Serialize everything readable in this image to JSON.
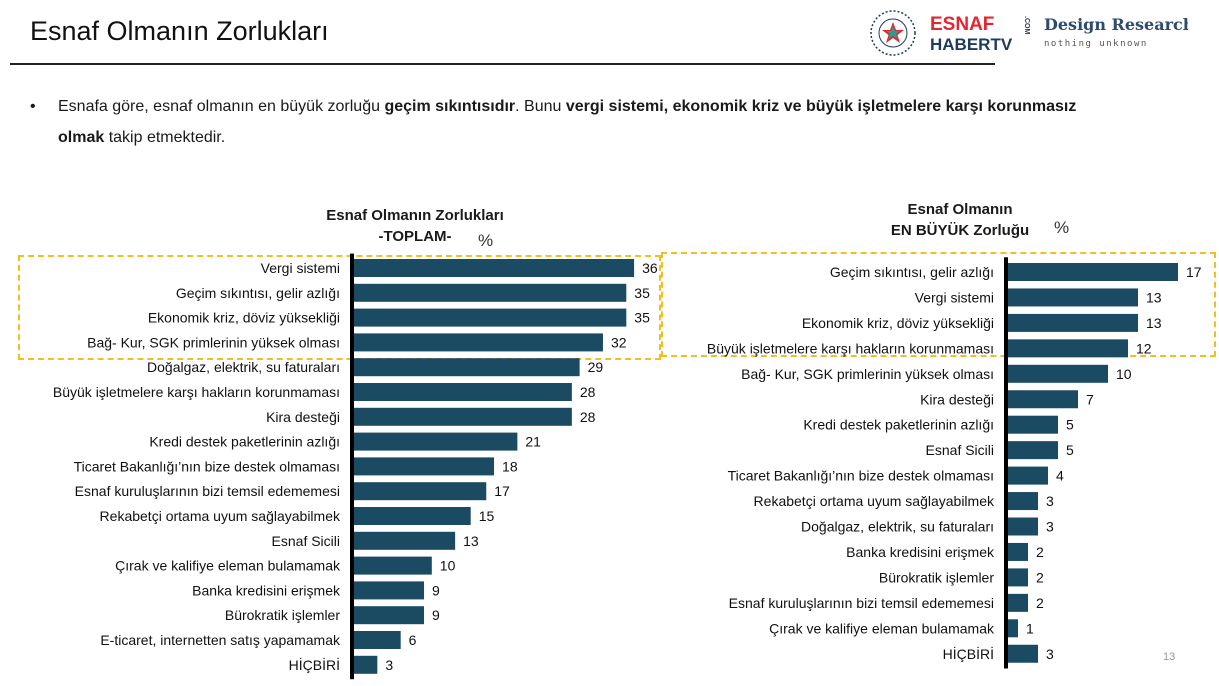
{
  "page": {
    "title": "Esnaf Olmanın Zorlukları",
    "page_number": "13",
    "bullet": {
      "t1": "Esnafa göre, esnaf olmanın en büyük zorluğu ",
      "b1": "geçim sıkıntısıdır",
      "t2": ".  Bunu ",
      "b2": "vergi sistemi, ekonomik kriz ve büyük işletmelere karşı korunmasız  olmak",
      "t3": " takip etmektedir."
    },
    "logos": {
      "badge_text": "ESNAF",
      "brand_top": "ESNAF",
      "brand_bottom": "HABERTV",
      "brand_com": ".COM",
      "dr_title": "Design Research",
      "dr_sub": "nothing unknown"
    },
    "colors": {
      "bar": "#1b4a63",
      "axis": "#000000",
      "highlight": "#f0c020",
      "logo_red": "#e3262f",
      "logo_navy": "#1f3a5f"
    }
  },
  "chart_data": [
    {
      "type": "bar",
      "orientation": "horizontal",
      "title_line1": "Esnaf Olmanın  Zorlukları",
      "title_line2": "-TOPLAM-",
      "unit": "%",
      "categories": [
        "Vergi sistemi",
        "Geçim sıkıntısı, gelir azlığı",
        "Ekonomik kriz, döviz yüksekliği",
        "Bağ- Kur, SGK primlerinin yüksek olması",
        "Doğalgaz, elektrik, su faturaları",
        "Büyük işletmelere karşı hakların korunmaması",
        "Kira desteği",
        "Kredi destek paketlerinin azlığı",
        "Ticaret Bakanlığı’nın bize destek olmaması",
        "Esnaf kuruluşlarının bizi temsil edememesi",
        "Rekabetçi ortama uyum sağlayabilmek",
        "Esnaf Sicili",
        "Çırak ve kalifiye eleman bulamamak",
        "Banka kredisini erişmek",
        "Bürokratik işlemler",
        "E-ticaret, internetten satış yapamamak",
        "HİÇBİRİ"
      ],
      "values": [
        36,
        35,
        35,
        32,
        29,
        28,
        28,
        21,
        18,
        17,
        15,
        13,
        10,
        9,
        9,
        6,
        3
      ],
      "highlighted_top": 4
    },
    {
      "type": "bar",
      "orientation": "horizontal",
      "title_line1": "Esnaf Olmanın",
      "title_line2": "EN BÜYÜK Zorluğu",
      "unit": "%",
      "categories": [
        "Geçim sıkıntısı, gelir azlığı",
        "Vergi sistemi",
        "Ekonomik kriz, döviz yüksekliği",
        "Büyük işletmelere karşı hakların korunmaması",
        "Bağ- Kur, SGK primlerinin yüksek olması",
        "Kira desteği",
        "Kredi destek paketlerinin azlığı",
        "Esnaf Sicili",
        "Ticaret Bakanlığı’nın bize destek olmaması",
        "Rekabetçi ortama uyum sağlayabilmek",
        "Doğalgaz, elektrik, su faturaları",
        "Banka kredisini erişmek",
        "Bürokratik işlemler",
        "Esnaf kuruluşlarının bizi temsil edememesi",
        "Çırak ve kalifiye eleman bulamamak",
        "HİÇBİRİ"
      ],
      "values": [
        17,
        13,
        13,
        12,
        10,
        7,
        5,
        5,
        4,
        3,
        3,
        2,
        2,
        2,
        1,
        3
      ],
      "highlighted_top": 4
    }
  ]
}
